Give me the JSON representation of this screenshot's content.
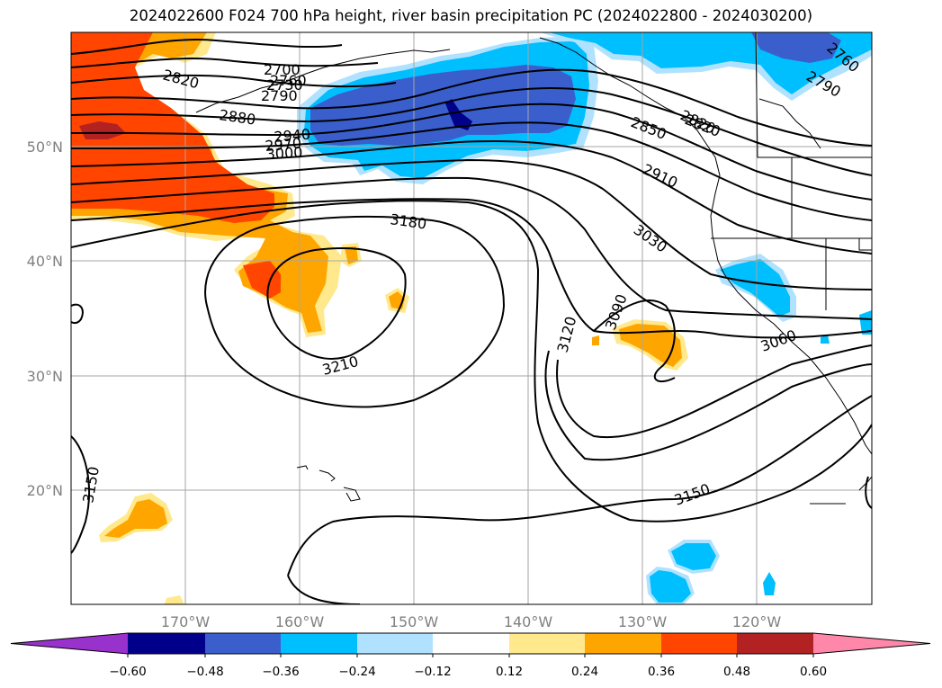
{
  "title": "2024022600 F024 700 hPa height, river basin precipitation PC (2024022800 - 2024030200)",
  "map": {
    "lat_labels": [
      "50°N",
      "40°N",
      "30°N",
      "20°N"
    ],
    "lon_labels": [
      "170°W",
      "160°W",
      "150°W",
      "140°W",
      "130°W",
      "120°W"
    ],
    "contour_labels": [
      "2700",
      "2730",
      "2760",
      "2790",
      "2820",
      "2880",
      "2940",
      "2970",
      "3000",
      "3180",
      "3210",
      "3150",
      "2850",
      "2820",
      "2910",
      "3030",
      "3090",
      "3120",
      "3060",
      "3150",
      "2760",
      "2790",
      "2820"
    ]
  },
  "colorbar": {
    "colors": [
      "#9932cc",
      "#00008b",
      "#3a5fcd",
      "#00bfff",
      "#b0e2ff",
      "#ffffff",
      "#ffe98c",
      "#ffa500",
      "#ff4500",
      "#b22222",
      "#ff88aa"
    ],
    "tick_labels": [
      "−0.60",
      "−0.48",
      "−0.36",
      "−0.24",
      "−0.12",
      "0.12",
      "0.24",
      "0.36",
      "0.48",
      "0.60"
    ]
  }
}
